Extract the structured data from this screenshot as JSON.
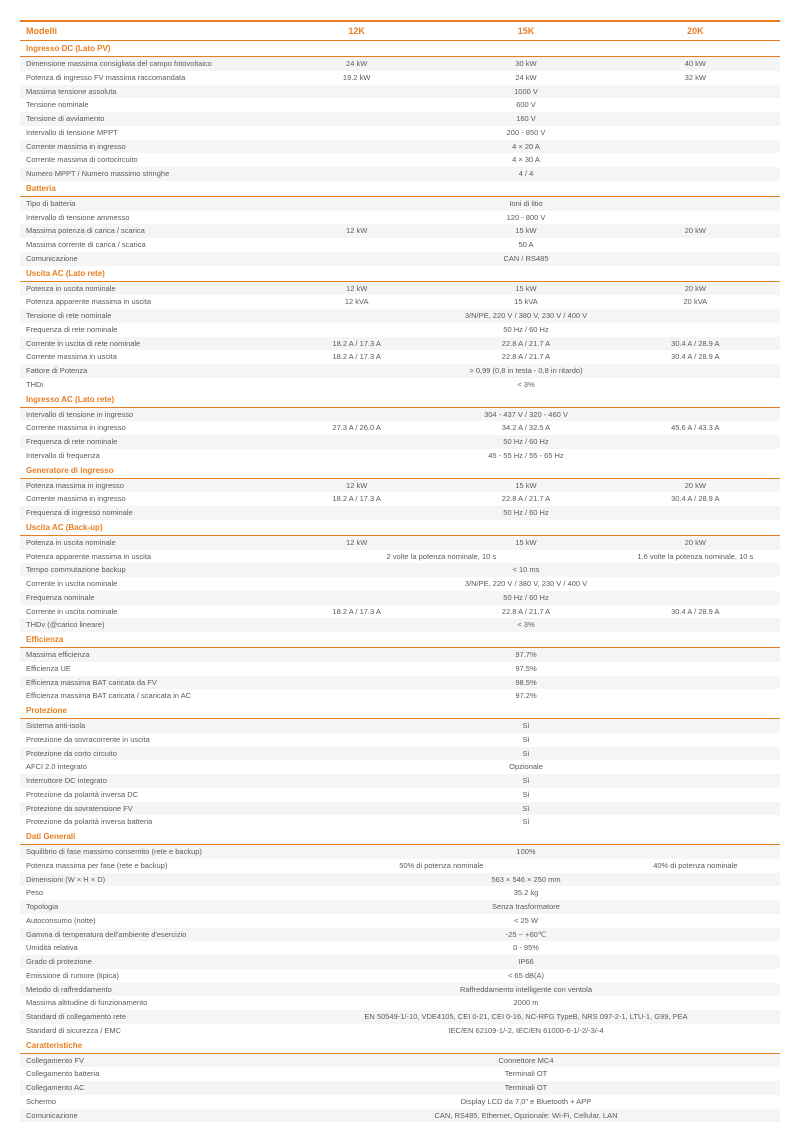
{
  "header": {
    "label": "Modelli",
    "col1": "12K",
    "col2": "15K",
    "col3": "20K"
  },
  "sections": [
    {
      "title": "Ingresso DC (Lato PV)",
      "rows": [
        {
          "label": "Dimensione massima consigliata del campo fotovoltaico",
          "col1": "24 kW",
          "col2": "30 kW",
          "col3": "40 kW"
        },
        {
          "label": "Potenza di ingresso FV massima raccomandata",
          "col1": "19.2 kW",
          "col2": "24 kW",
          "col3": "32 kW"
        },
        {
          "label": "Massima tensione assoluta",
          "span": "1000 V"
        },
        {
          "label": "Tensione nominale",
          "span": "600 V"
        },
        {
          "label": "Tensione di avviamento",
          "span": "160 V"
        },
        {
          "label": "Intervallo di tensione MPPT",
          "span": "200 - 850 V"
        },
        {
          "label": "Corrente massima in ingresso",
          "span": "4 × 20 A"
        },
        {
          "label": "Corrente massima di cortocircuito",
          "span": "4 × 30 A"
        },
        {
          "label": "Numero MPPT / Numero massimo stringhe",
          "span": "4 / 4"
        }
      ]
    },
    {
      "title": "Batteria",
      "rows": [
        {
          "label": "Tipo di batteria",
          "span": "Ioni di litio"
        },
        {
          "label": "Intervallo di tensione ammesso",
          "span": "120 - 800 V"
        },
        {
          "label": "Massima potenza di carica / scarica",
          "col1": "12 kW",
          "col2": "15 kW",
          "col3": "20 kW"
        },
        {
          "label": "Massima corrente di carica / scarica",
          "span": "50 A"
        },
        {
          "label": "Comunicazione",
          "span": "CAN / RS485"
        }
      ]
    },
    {
      "title": "Uscita AC (Lato rete)",
      "rows": [
        {
          "label": "Potenza in uscita nominale",
          "col1": "12 kW",
          "col2": "15 kW",
          "col3": "20 kW"
        },
        {
          "label": "Potenza apparente massima in uscita",
          "col1": "12 kVA",
          "col2": "15 kVA",
          "col3": "20 kVA"
        },
        {
          "label": "Tensione di rete nominale",
          "span": "3/N/PE, 220 V / 380 V, 230 V / 400 V"
        },
        {
          "label": "Frequenza di rete nominale",
          "span": "50 Hz / 60 Hz"
        },
        {
          "label": "Corrente in uscita di rete nominale",
          "col1": "18.2 A / 17.3 A",
          "col2": "22.8 A / 21.7 A",
          "col3": "30.4 A / 28.9 A"
        },
        {
          "label": "Corrente massima in uscita",
          "col1": "18.2 A / 17.3 A",
          "col2": "22.8 A / 21.7 A",
          "col3": "30.4 A / 28.9 A"
        },
        {
          "label": "Fattore di Potenza",
          "span": "> 0,99 (0,8 in testa - 0,8 in ritardo)"
        },
        {
          "label": "THDi",
          "span": "< 3%"
        }
      ]
    },
    {
      "title": "Ingresso AC (Lato rete)",
      "rows": [
        {
          "label": "Intervallo di tensione in ingresso",
          "span": "304 - 437 V / 320 - 460 V"
        },
        {
          "label": "Corrente massima in ingresso",
          "col1": "27.3 A / 26.0 A",
          "col2": "34.2 A / 32.5 A",
          "col3": "45.6 A / 43.3 A"
        },
        {
          "label": "Frequenza di rete nominale",
          "span": "50 Hz / 60 Hz"
        },
        {
          "label": "Intervallo di frequenza",
          "span": "45 - 55 Hz / 55 - 65 Hz"
        }
      ]
    },
    {
      "title": "Generatore di ingresso",
      "rows": [
        {
          "label": "Potenza massima in ingresso",
          "col1": "12 kW",
          "col2": "15 kW",
          "col3": "20 kW"
        },
        {
          "label": "Corrente massima in ingresso",
          "col1": "18.2 A / 17.3 A",
          "col2": "22.8 A / 21.7 A",
          "col3": "30.4 A / 28.9 A"
        },
        {
          "label": "Frequenza di ingresso nominale",
          "span": "50 Hz / 60 Hz"
        }
      ]
    },
    {
      "title": "Uscita AC (Back-up)",
      "rows": [
        {
          "label": "Potenza in uscita nominale",
          "col1": "12 kW",
          "col2": "15 kW",
          "col3": "20 kW"
        },
        {
          "label": "Potenza apparente massima in uscita",
          "col12": "2 volte la potenza nominale, 10 s",
          "col3": "1.6 volte la potenza nominale, 10 s"
        },
        {
          "label": "Tempo commutazione backup",
          "span": "< 10 ms"
        },
        {
          "label": "Corrente in uscita nominale",
          "span": "3/N/PE, 220 V / 380 V, 230 V / 400 V"
        },
        {
          "label": "Frequenza nominale",
          "span": "50 Hz / 60 Hz"
        },
        {
          "label": "Corrente in uscita nominale",
          "col1": "18.2 A / 17.3 A",
          "col2": "22.8 A / 21.7 A",
          "col3": "30.4 A / 28.9 A"
        },
        {
          "label": "THDv (@carico lineare)",
          "span": "< 3%"
        }
      ]
    },
    {
      "title": "Efficienza",
      "rows": [
        {
          "label": "Massima efficienza",
          "span": "97.7%"
        },
        {
          "label": "Efficienza UE",
          "span": "97.5%"
        },
        {
          "label": "Efficienza massima BAT caricata da FV",
          "span": "98.5%"
        },
        {
          "label": "Efficienza massima BAT caricata / scaricata in AC",
          "span": "97.2%"
        }
      ]
    },
    {
      "title": "Protezione",
      "rows": [
        {
          "label": "Sistema anti-isola",
          "span": "Sì"
        },
        {
          "label": "Protezione da sovracorrente in uscita",
          "span": "Sì"
        },
        {
          "label": "Protezione da corto circuito",
          "span": "Sì"
        },
        {
          "label": "AFCI 2.0 integrato",
          "span": "Opzionale"
        },
        {
          "label": "Interruttore DC integrato",
          "span": "Sì"
        },
        {
          "label": "Protezione da polarità inversa DC",
          "span": "Sì"
        },
        {
          "label": "Protezione da sovratensione FV",
          "span": "Sì"
        },
        {
          "label": "Protezione da polarità inversa batteria",
          "span": "Sì"
        }
      ]
    },
    {
      "title": "Dati Generali",
      "rows": [
        {
          "label": "Squilibrio di fase massimo consentito (rete e backup)",
          "span": "100%"
        },
        {
          "label": "Potenza massima per fase (rete e backup)",
          "col12": "50% di potenza nominale",
          "col3": "40% di potenza nominale"
        },
        {
          "label": "Dimensioni (W × H × D)",
          "span": "563 × 546 × 250 mm"
        },
        {
          "label": "Peso",
          "span": "35.2 kg"
        },
        {
          "label": "Topologia",
          "span": "Senza trasformatore"
        },
        {
          "label": "Autoconsumo (notte)",
          "span": "< 25 W"
        },
        {
          "label": "Gamma di temperatura dell'ambiente d'esercizio",
          "span": "-25 ~ +60℃"
        },
        {
          "label": "Umidità relativa",
          "span": "0 - 95%"
        },
        {
          "label": "Grado di protezione",
          "span": "IP66"
        },
        {
          "label": "Emissione di rumore (tipica)",
          "span": "< 65 dB(A)"
        },
        {
          "label": "Metodo di raffreddamento",
          "span": "Raffreddamento intelligente con ventola"
        },
        {
          "label": "Massima altitudine di funzionamento",
          "span": "2000 m"
        },
        {
          "label": "Standard di collegamento rete",
          "span": "EN 50549-1/-10, VDE4105, CEI 0-21, CEI 0-16, NC-RFG TypeB, NRS 097-2-1, LTU-1, G99, PEA"
        },
        {
          "label": "Standard di sicurezza / EMC",
          "span": "IEC/EN 62109-1/-2, IEC/EN 61000-6-1/-2/-3/-4"
        }
      ]
    },
    {
      "title": "Caratteristiche",
      "rows": [
        {
          "label": "Collegamento FV",
          "span": "Connettore MC4"
        },
        {
          "label": "Collegamento batteria",
          "span": "Terminali OT"
        },
        {
          "label": "Collegamento AC",
          "span": "Terminali OT"
        },
        {
          "label": "Schermo",
          "span": "Display LCD da 7,0\" e Bluetooth + APP"
        },
        {
          "label": "Comunicazione",
          "span": "CAN, RS485, Ethernet, Opzionale: Wi-Fi, Cellular, LAN"
        }
      ]
    }
  ]
}
